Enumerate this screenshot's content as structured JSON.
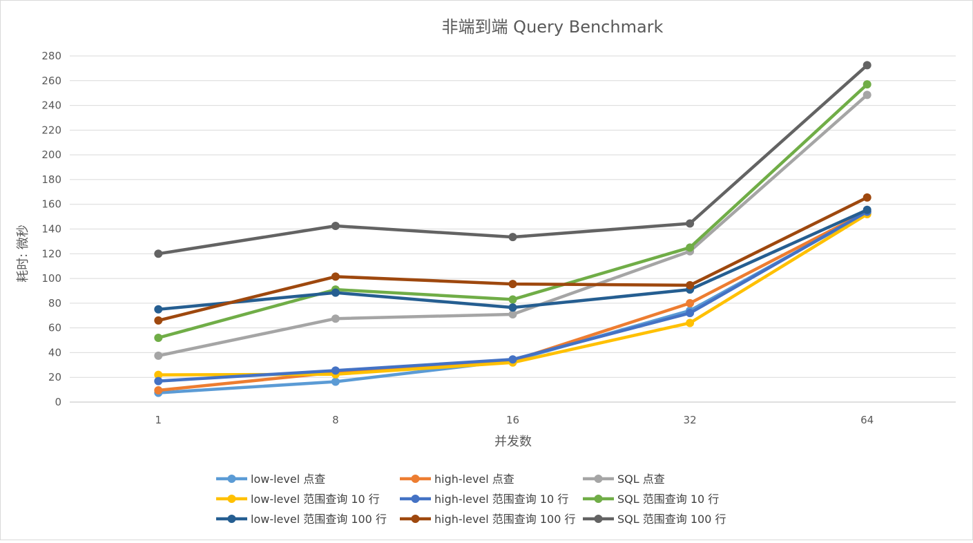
{
  "chart_data": {
    "type": "line",
    "title": "非端到端 Query Benchmark",
    "xlabel": "并发数",
    "ylabel": "耗时: 微秒",
    "categories": [
      "1",
      "8",
      "16",
      "32",
      "64"
    ],
    "ylim": [
      0,
      280
    ],
    "yticks": [
      0,
      20,
      40,
      60,
      80,
      100,
      120,
      140,
      160,
      180,
      200,
      220,
      240,
      260,
      280
    ],
    "grid": true,
    "legend_position": "bottom",
    "series": [
      {
        "name": "low-level 点查",
        "color": "#5b9bd5",
        "values": [
          7.5,
          16.5,
          33.5,
          74,
          153
        ]
      },
      {
        "name": "high-level 点查",
        "color": "#ed7d31",
        "values": [
          9.5,
          24,
          33.5,
          80,
          154
        ]
      },
      {
        "name": "SQL 点查",
        "color": "#a5a5a5",
        "values": [
          37.5,
          67.5,
          71,
          122,
          248.5
        ]
      },
      {
        "name": "low-level 范围查询 10 行",
        "color": "#ffc000",
        "values": [
          22,
          22.5,
          32,
          64,
          152
        ]
      },
      {
        "name": "high-level 范围查询 10 行",
        "color": "#4472c4",
        "values": [
          17,
          25.5,
          34.5,
          72,
          154
        ]
      },
      {
        "name": "SQL 范围查询 10 行",
        "color": "#70ad47",
        "values": [
          52,
          91,
          83,
          125,
          257
        ]
      },
      {
        "name": "low-level 范围查询 100 行",
        "color": "#255e91",
        "values": [
          75,
          88.5,
          76.5,
          91,
          155.5
        ]
      },
      {
        "name": "high-level 范围查询 100 行",
        "color": "#9e480e",
        "values": [
          66,
          101.5,
          95.5,
          94.5,
          165.5
        ]
      },
      {
        "name": "SQL 范围查询 100 行",
        "color": "#636363",
        "values": [
          120,
          142.5,
          133.5,
          144.5,
          272.5
        ]
      }
    ]
  }
}
